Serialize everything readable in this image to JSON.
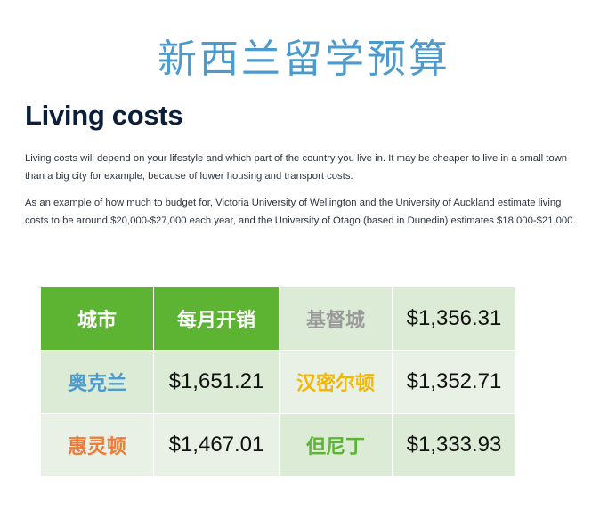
{
  "banner_title": "新西兰留学预算",
  "article": {
    "heading": "Living costs",
    "paragraph_1": "Living costs will depend on your lifestyle and which part of the country you live in. It may be cheaper to live in a small town than a big city for example, because of lower housing and transport costs.",
    "paragraph_2": "As an example of how much to budget for, Victoria University of Wellington and the University of Auckland estimate living costs to be around $20,000-$27,000 each year, and the University of Otago (based in Dunedin) estimates $18,000-$21,000."
  },
  "table": {
    "header_city": "城市",
    "header_monthly": "每月开销",
    "rows": [
      {
        "city_left": "奥克兰",
        "amount_left": "$1,651.21",
        "city_right": "汉密尔顿",
        "amount_right": "$1,352.71"
      },
      {
        "city_left": "惠灵顿",
        "amount_left": "$1,467.01",
        "city_right": "但尼丁",
        "amount_right": "$1,333.93"
      }
    ],
    "top_right_city": "基督城",
    "top_right_amount": "$1,356.31"
  },
  "colors": {
    "banner": "#4b9bcf",
    "header_green": "#5db332",
    "auckland": "#4b9bcf",
    "hamilton": "#f2b705",
    "wellington": "#f07a35",
    "dunedin": "#5db332",
    "christchurch": "#9a9a9a"
  }
}
